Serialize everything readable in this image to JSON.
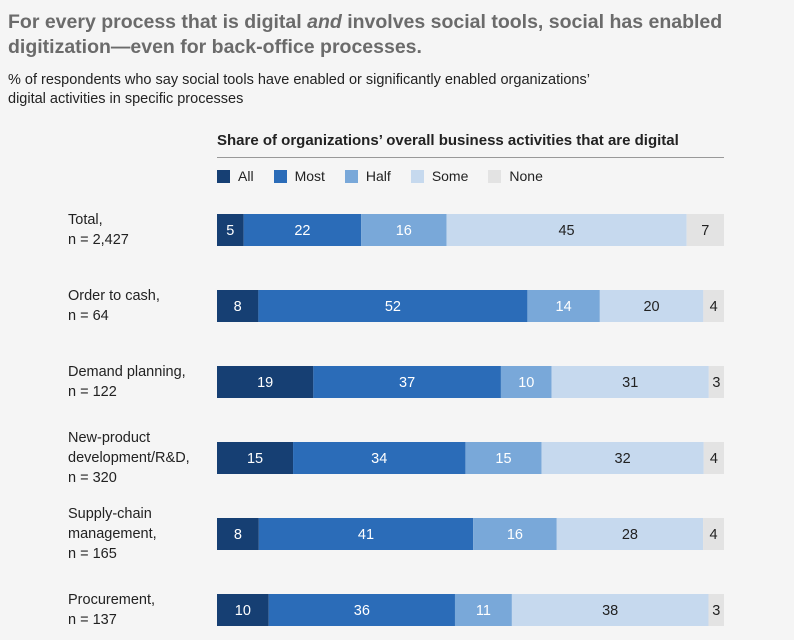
{
  "title": {
    "part1": "For every process that is digital ",
    "emph": "and",
    "part2": " involves social tools, social has enabled digitization—even for back-office processes."
  },
  "subtitle": {
    "line1": "% of respondents who say social tools have enabled or significantly enabled organizations’",
    "line2": "digital activities in specific processes"
  },
  "chart_data": {
    "type": "bar",
    "orientation": "horizontal",
    "stacked": true,
    "title": "Share of organizations’ overall business activities that are digital",
    "legend_position": "top",
    "grid": false,
    "categories": [
      [
        "Total,",
        "n = 2,427"
      ],
      [
        "Order to cash,",
        "n = 64"
      ],
      [
        "Demand planning,",
        "n = 122"
      ],
      [
        "New-product",
        "development/R&D,",
        "n = 320"
      ],
      [
        "Supply-chain",
        "management,",
        "n = 165"
      ],
      [
        "Procurement,",
        "n = 137"
      ]
    ],
    "series": [
      {
        "name": "All",
        "color": "#163f73",
        "label_color": "#ffffff",
        "values": [
          5,
          8,
          19,
          15,
          8,
          10
        ]
      },
      {
        "name": "Most",
        "color": "#2b6cb8",
        "label_color": "#ffffff",
        "values": [
          22,
          52,
          37,
          34,
          41,
          36
        ]
      },
      {
        "name": "Half",
        "color": "#79a8d9",
        "label_color": "#ffffff",
        "values": [
          16,
          14,
          10,
          15,
          16,
          11
        ]
      },
      {
        "name": "Some",
        "color": "#c6d9ee",
        "label_color": "#222222",
        "values": [
          45,
          20,
          31,
          32,
          28,
          38
        ]
      },
      {
        "name": "None",
        "color": "#e3e3e3",
        "label_color": "#222222",
        "values": [
          7,
          4,
          3,
          4,
          4,
          3
        ]
      }
    ]
  }
}
